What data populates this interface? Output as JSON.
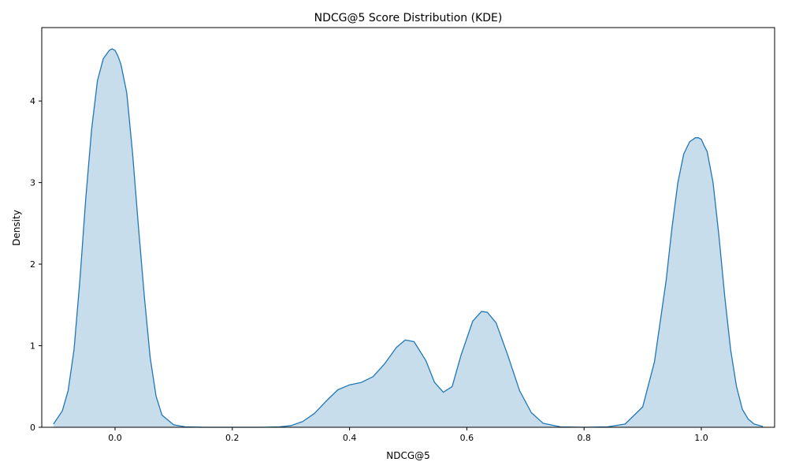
{
  "chart_data": {
    "type": "area",
    "title": "NDCG@5 Score Distribution (KDE)",
    "xlabel": "NDCG@5",
    "ylabel": "Density",
    "xlim": [
      -0.125,
      1.125
    ],
    "ylim": [
      0,
      4.9
    ],
    "xticks": [
      0.0,
      0.2,
      0.4,
      0.6,
      0.8,
      1.0
    ],
    "xtick_labels": [
      "0.0",
      "0.2",
      "0.4",
      "0.6",
      "0.8",
      "1.0"
    ],
    "yticks": [
      0,
      1,
      2,
      3,
      4
    ],
    "ytick_labels": [
      "0",
      "1",
      "2",
      "3",
      "4"
    ],
    "grid": false,
    "colors": {
      "line": "#1f77b4",
      "fill": "#1f77b4"
    },
    "series": [
      {
        "x": [
          -0.105,
          -0.09,
          -0.08,
          -0.07,
          -0.06,
          -0.05,
          -0.04,
          -0.03,
          -0.02,
          -0.01,
          -0.005,
          0.0,
          0.005,
          0.01,
          0.02,
          0.03,
          0.04,
          0.05,
          0.06,
          0.07,
          0.08,
          0.1,
          0.12,
          0.15,
          0.2,
          0.25,
          0.28,
          0.3,
          0.32,
          0.34,
          0.36,
          0.38,
          0.4,
          0.42,
          0.44,
          0.46,
          0.48,
          0.495,
          0.51,
          0.53,
          0.545,
          0.56,
          0.575,
          0.59,
          0.61,
          0.625,
          0.635,
          0.65,
          0.67,
          0.69,
          0.71,
          0.73,
          0.76,
          0.8,
          0.84,
          0.87,
          0.9,
          0.92,
          0.94,
          0.95,
          0.96,
          0.97,
          0.98,
          0.99,
          0.995,
          1.0,
          1.005,
          1.01,
          1.02,
          1.03,
          1.04,
          1.05,
          1.06,
          1.07,
          1.08,
          1.09,
          1.105
        ],
        "y": [
          0.04,
          0.2,
          0.45,
          0.95,
          1.8,
          2.8,
          3.65,
          4.25,
          4.52,
          4.62,
          4.64,
          4.62,
          4.55,
          4.45,
          4.1,
          3.35,
          2.45,
          1.6,
          0.85,
          0.38,
          0.15,
          0.03,
          0.005,
          0.0,
          0.0,
          0.0,
          0.005,
          0.02,
          0.07,
          0.17,
          0.32,
          0.46,
          0.52,
          0.55,
          0.62,
          0.78,
          0.98,
          1.07,
          1.05,
          0.82,
          0.55,
          0.43,
          0.5,
          0.88,
          1.3,
          1.42,
          1.41,
          1.28,
          0.88,
          0.45,
          0.18,
          0.05,
          0.005,
          0.0,
          0.005,
          0.04,
          0.25,
          0.8,
          1.8,
          2.45,
          3.0,
          3.35,
          3.5,
          3.55,
          3.55,
          3.53,
          3.45,
          3.38,
          3.0,
          2.35,
          1.6,
          0.95,
          0.5,
          0.22,
          0.1,
          0.04,
          0.01
        ]
      }
    ]
  }
}
